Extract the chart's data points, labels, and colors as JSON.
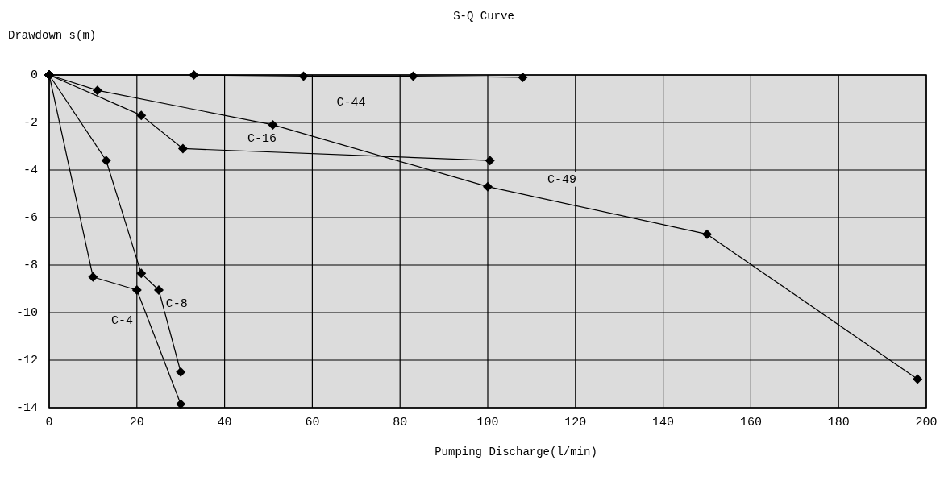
{
  "chart_data": {
    "type": "line",
    "title": "S-Q Curve",
    "xlabel": "Pumping Discharge(l/min)",
    "ylabel": "Drawdown s(m)",
    "xlim": [
      0,
      200
    ],
    "ylim": [
      -14,
      0
    ],
    "xticks": [
      0,
      20,
      40,
      60,
      80,
      100,
      120,
      140,
      160,
      180,
      200
    ],
    "yticks": [
      -14,
      -12,
      -10,
      -8,
      -6,
      -4,
      -2,
      0
    ],
    "grid": true,
    "legend": false,
    "marker": "diamond",
    "line_style": "solid",
    "series": [
      {
        "name": "C-44",
        "color": "#000000",
        "x": [
          0,
          33,
          58,
          83,
          108
        ],
        "values": [
          0,
          0,
          -0.05,
          -0.05,
          -0.1
        ]
      },
      {
        "name": "C-49",
        "color": "#000000",
        "x": [
          0,
          11,
          51,
          100,
          150,
          198
        ],
        "values": [
          0,
          -0.65,
          -2.1,
          -4.7,
          -6.7,
          -12.8
        ]
      },
      {
        "name": "C-16",
        "color": "#000000",
        "x": [
          0,
          21,
          30.5,
          100.5
        ],
        "values": [
          0,
          -1.7,
          -3.1,
          -3.6
        ]
      },
      {
        "name": "C-8",
        "color": "#000000",
        "x": [
          0,
          13,
          21,
          25,
          30
        ],
        "values": [
          0,
          -3.6,
          -8.35,
          -9.05,
          -12.5
        ]
      },
      {
        "name": "C-4",
        "color": "#000000",
        "x": [
          0,
          10,
          20,
          30
        ],
        "values": [
          0,
          -8.5,
          -9.05,
          -13.85
        ]
      }
    ]
  }
}
